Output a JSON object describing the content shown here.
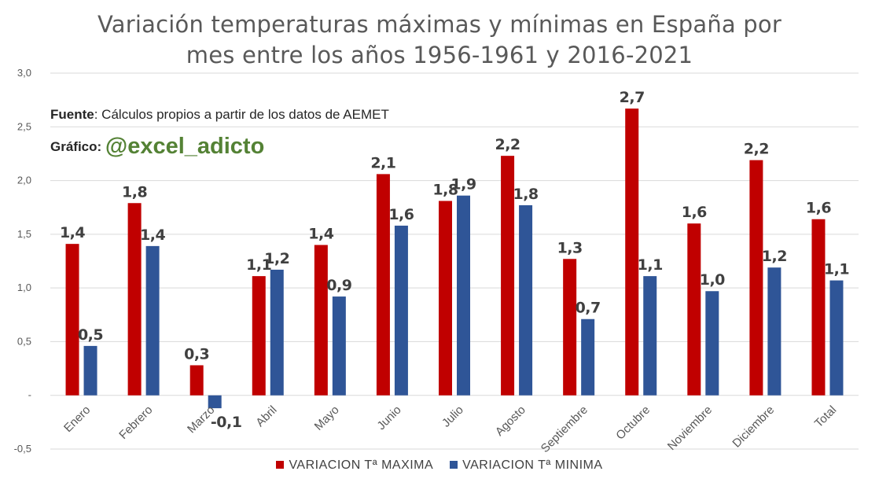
{
  "title_line1": "Variación temperaturas máximas y mínimas en España por",
  "title_line2": "mes entre los años 1956-1961 y 2016-2021",
  "source_label": "Fuente",
  "source_text": ": Cálculos propios a partir de los datos de AEMET",
  "credit_label": "Gráfico:",
  "credit_handle": "@excel_adicto",
  "colors": {
    "max": "#C00000",
    "min": "#2F5597",
    "grid": "#D9D9D9",
    "title": "#595959"
  },
  "chart_data": {
    "type": "bar",
    "categories": [
      "Enero",
      "Febrero",
      "Marzo",
      "Abril",
      "Mayo",
      "Junio",
      "Julio",
      "Agosto",
      "Septiembre",
      "Octubre",
      "Noviembre",
      "Diciembre",
      "Total"
    ],
    "series": [
      {
        "name": "VARIACION Tª MAXIMA",
        "values": [
          1.41,
          1.79,
          0.28,
          1.11,
          1.4,
          2.06,
          1.81,
          2.23,
          1.27,
          2.67,
          1.6,
          2.19,
          1.64
        ],
        "labels": [
          "1,4",
          "1,8",
          "0,3",
          "1,1",
          "1,4",
          "2,1",
          "1,8",
          "2,2",
          "1,3",
          "2,7",
          "1,6",
          "2,2",
          "1,6"
        ]
      },
      {
        "name": "VARIACION Tª MINIMA",
        "values": [
          0.46,
          1.39,
          -0.12,
          1.17,
          0.92,
          1.58,
          1.86,
          1.77,
          0.71,
          1.11,
          0.97,
          1.19,
          1.07
        ],
        "labels": [
          "0,5",
          "1,4",
          "-0,1",
          "1,2",
          "0,9",
          "1,6",
          "1,9",
          "1,8",
          "0,7",
          "1,1",
          "1,0",
          "1,2",
          "1,1"
        ]
      }
    ],
    "ylim": [
      -0.5,
      3.0
    ],
    "yticks": [
      -0.5,
      0,
      0.5,
      1.0,
      1.5,
      2.0,
      2.5,
      3.0
    ],
    "ytick_labels": [
      "-0,5",
      "-",
      "0,5",
      "1,0",
      "1,5",
      "2,0",
      "2,5",
      "3,0"
    ],
    "grid": true,
    "legend_position": "bottom"
  }
}
